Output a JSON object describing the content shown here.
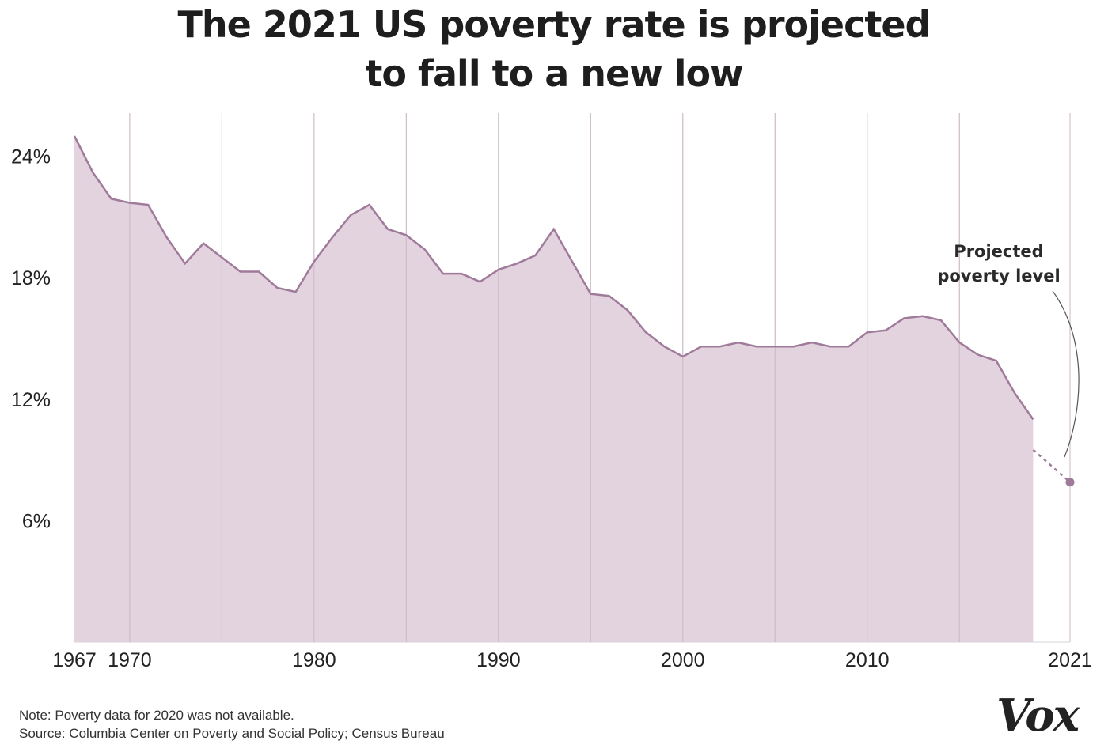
{
  "title": {
    "line1": "The 2021 US poverty rate is projected",
    "line2": "to fall to a new low"
  },
  "notes": {
    "note": "Note: Poverty data for 2020 was not available.",
    "source": "Source: Columbia Center on Poverty and Social Policy; Census Bureau"
  },
  "logo": "Vox",
  "colors": {
    "line": "#a07a9a",
    "fill": "#e0d1dc",
    "grid": "#d4d4d4",
    "dot": "#a07a9a"
  },
  "chart_data": {
    "type": "area",
    "title": "The 2021 US poverty rate is projected to fall to a new low",
    "xlabel": "",
    "ylabel": "",
    "xlim": [
      1967,
      2021
    ],
    "ylim": [
      0,
      26
    ],
    "y_ticks": [
      6,
      12,
      18,
      24
    ],
    "y_tick_labels": [
      "6%",
      "12%",
      "18%",
      "24%"
    ],
    "x_ticks": [
      1967,
      1970,
      1980,
      1990,
      2000,
      2010,
      2021
    ],
    "x_tick_labels": [
      "1967",
      "1970",
      "1980",
      "1990",
      "2000",
      "2010",
      "2021"
    ],
    "x_gridlines": [
      1970,
      1975,
      1980,
      1985,
      1990,
      1995,
      2000,
      2005,
      2010,
      2015,
      2021
    ],
    "grid": true,
    "series": [
      {
        "x": [
          1967,
          1968,
          1969,
          1970,
          1971,
          1972,
          1973,
          1974,
          1975,
          1976,
          1977,
          1978,
          1979,
          1980,
          1981,
          1982,
          1983,
          1984,
          1985,
          1986,
          1987,
          1988,
          1989,
          1990,
          1991,
          1992,
          1993,
          1994,
          1995,
          1996,
          1997,
          1998,
          1999,
          2000,
          2001,
          2002,
          2003,
          2004,
          2005,
          2006,
          2007,
          2008,
          2009,
          2010,
          2011,
          2012,
          2013,
          2014,
          2015,
          2016,
          2017,
          2018,
          2019
        ],
        "values": [
          25.0,
          23.2,
          21.9,
          21.7,
          21.6,
          20.0,
          18.7,
          19.7,
          19.0,
          18.3,
          18.3,
          17.5,
          17.3,
          18.8,
          20.0,
          21.1,
          21.6,
          20.4,
          20.1,
          19.4,
          18.2,
          18.2,
          17.8,
          18.4,
          18.7,
          19.1,
          20.4,
          18.8,
          17.2,
          17.1,
          16.4,
          15.3,
          14.6,
          14.1,
          14.6,
          14.6,
          14.8,
          14.6,
          14.6,
          14.6,
          14.8,
          14.6,
          14.6,
          15.3,
          15.4,
          16.0,
          16.1,
          15.9,
          14.8,
          14.2,
          13.9,
          12.3,
          11.0
        ]
      },
      {
        "name": "Projected poverty level",
        "style": "dotted",
        "x": [
          2019,
          2021
        ],
        "values": [
          9.5,
          7.9
        ]
      }
    ],
    "annotations": [
      {
        "text_line1": "Projected",
        "text_line2": "poverty level",
        "target_x": 2021,
        "target_y": 7.9
      }
    ]
  }
}
